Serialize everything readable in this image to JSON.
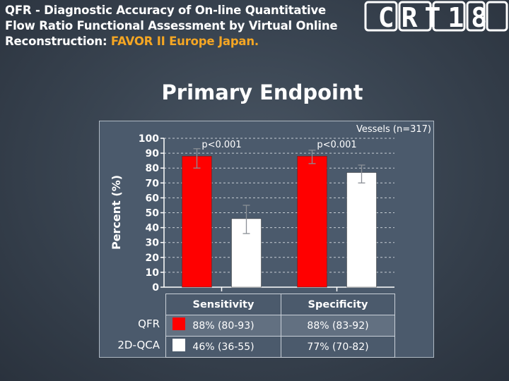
{
  "slide": {
    "title_part1": "QFR - Diagnostic Accuracy of On-line Quantitative Flow Ratio Functional Assessment by Virtual Online Reconstruction: ",
    "title_highlight": "FAVOR II Europe Japan.",
    "logo_text": "CRT18",
    "heading": "Primary Endpoint",
    "accent_color": "#f5a623"
  },
  "chart_data": {
    "type": "bar",
    "title": "",
    "annotation": "Vessels (n=317)",
    "ylabel": "Percent (%)",
    "xlabel": "",
    "ylim": [
      0,
      100
    ],
    "yticks": [
      0,
      10,
      20,
      30,
      40,
      50,
      60,
      70,
      80,
      90,
      100
    ],
    "grid": true,
    "categories": [
      "Sensitivity",
      "Specificity"
    ],
    "series": [
      {
        "name": "QFR",
        "color": "#ff0000",
        "values": [
          88,
          88
        ],
        "ci_low": [
          80,
          83
        ],
        "ci_high": [
          93,
          92
        ]
      },
      {
        "name": "2D-QCA",
        "color": "#ffffff",
        "values": [
          46,
          77
        ],
        "ci_low": [
          36,
          70
        ],
        "ci_high": [
          55,
          82
        ]
      }
    ],
    "pvalues": [
      "p<0.001",
      "p<0.001"
    ],
    "table": {
      "headers": [
        "Sensitivity",
        "Specificity"
      ],
      "rows": [
        {
          "label": "QFR",
          "cells": [
            "88% (80-93)",
            "88% (83-92)"
          ]
        },
        {
          "label": "2D-QCA",
          "cells": [
            "46% (36-55)",
            "77% (70-82)"
          ]
        }
      ]
    }
  }
}
